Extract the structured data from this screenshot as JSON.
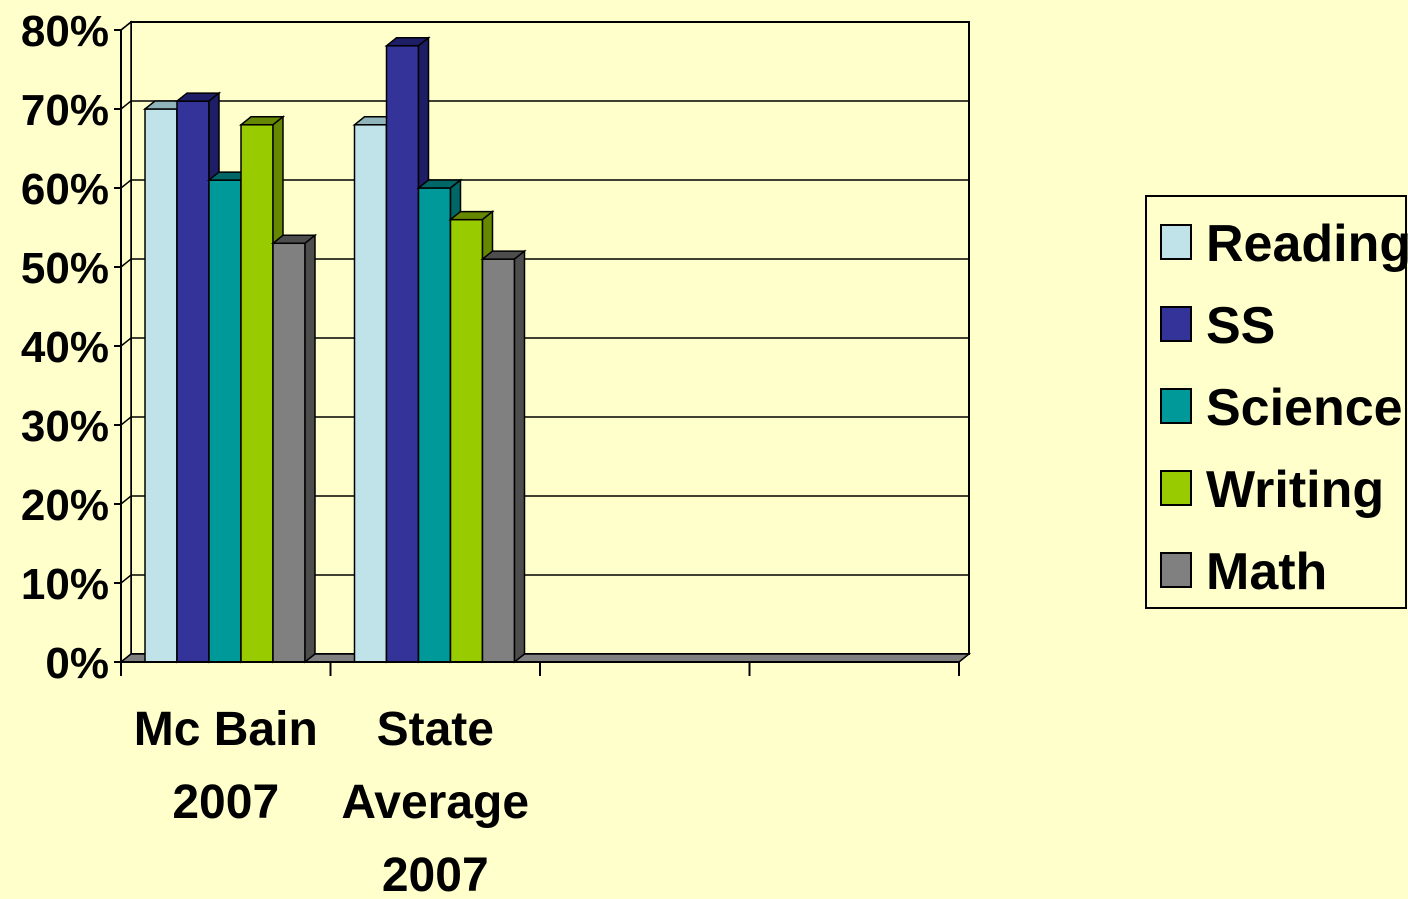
{
  "chart_data": {
    "type": "bar",
    "title": "",
    "xlabel": "",
    "ylabel": "",
    "categories": [
      [
        "Mc Bain",
        "2007"
      ],
      [
        "State",
        "Average",
        "2007"
      ],
      [],
      []
    ],
    "ylim": [
      0,
      80
    ],
    "y_ticks": [
      "0%",
      "10%",
      "20%",
      "30%",
      "40%",
      "50%",
      "60%",
      "70%",
      "80%"
    ],
    "grid": true,
    "legend_position": "right",
    "series": [
      {
        "name": "Reading",
        "color": "#BFE3E8",
        "side_color": "#8FB4B9",
        "values": [
          70,
          68,
          null,
          null
        ]
      },
      {
        "name": "SS",
        "color": "#333399",
        "side_color": "#1E1E66",
        "values": [
          71,
          78,
          null,
          null
        ]
      },
      {
        "name": "Science",
        "color": "#009999",
        "side_color": "#006666",
        "values": [
          61,
          60,
          null,
          null
        ]
      },
      {
        "name": "Writing",
        "color": "#99CC00",
        "side_color": "#668800",
        "values": [
          68,
          56,
          null,
          null
        ]
      },
      {
        "name": "Math",
        "color": "#808080",
        "side_color": "#4D4D4D",
        "values": [
          53,
          51,
          null,
          null
        ]
      }
    ]
  }
}
